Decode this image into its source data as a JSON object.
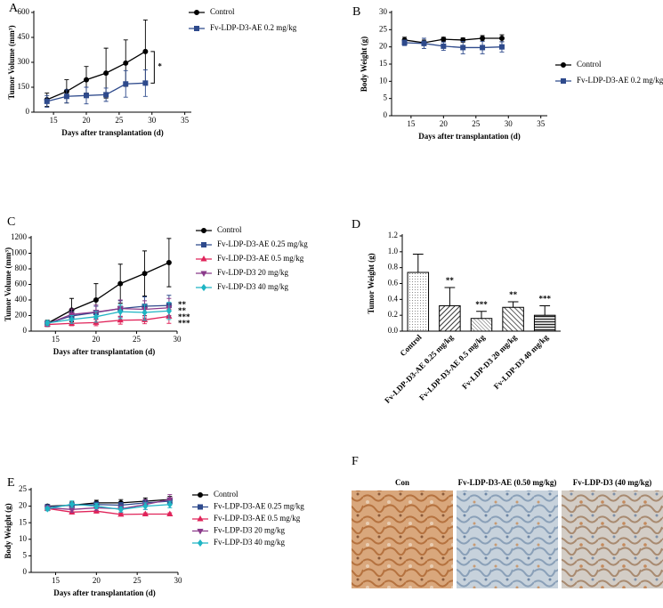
{
  "chart_data": [
    {
      "type": "line",
      "panel_label": "A",
      "xlabel": "Days after transplantation (d)",
      "ylabel": "Tumor Volume (mm³)",
      "x": [
        14,
        17,
        20,
        23,
        26,
        29
      ],
      "xlim": [
        12,
        36
      ],
      "xticks": [
        15,
        20,
        25,
        30,
        35
      ],
      "ylim": [
        0,
        600
      ],
      "yticks": [
        0,
        150,
        300,
        450,
        600
      ],
      "series": [
        {
          "name": "Control",
          "color": "#000000",
          "marker": "circle",
          "values": [
            75,
            125,
            195,
            235,
            295,
            365
          ],
          "errors": [
            40,
            70,
            80,
            150,
            140,
            190
          ]
        },
        {
          "name": "Fv-LDP-D3-AE 0.2 mg/kg",
          "color": "#2e4a8c",
          "marker": "square",
          "values": [
            65,
            95,
            100,
            105,
            170,
            175
          ],
          "errors": [
            35,
            40,
            50,
            40,
            80,
            80
          ]
        }
      ],
      "annotations": [
        "*"
      ]
    },
    {
      "type": "line",
      "panel_label": "B",
      "xlabel": "Days after transplantation (d)",
      "ylabel": "Body Weight (g)",
      "x": [
        14,
        17,
        20,
        23,
        26,
        29
      ],
      "xlim": [
        12,
        36
      ],
      "xticks": [
        15,
        20,
        25,
        30,
        35
      ],
      "ylim": [
        0,
        30
      ],
      "yticks": [
        0,
        5,
        10,
        15,
        20,
        25,
        30
      ],
      "series": [
        {
          "name": "Control",
          "color": "#000000",
          "marker": "circle",
          "values": [
            22,
            21.2,
            22.2,
            22,
            22.5,
            22.5
          ],
          "errors": [
            0.8,
            0.8,
            0.6,
            0.6,
            0.8,
            1
          ]
        },
        {
          "name": "Fv-LDP-D3-AE 0.2 mg/kg",
          "color": "#2e4a8c",
          "marker": "square",
          "values": [
            21.2,
            21,
            20.2,
            19.8,
            19.8,
            20
          ],
          "errors": [
            0.8,
            1.5,
            1.2,
            1.8,
            1.8,
            1.5
          ]
        }
      ]
    },
    {
      "type": "line",
      "panel_label": "C",
      "xlabel": "Days after transplantation (d)",
      "ylabel": "Tumor Volume (mm³)",
      "x": [
        14,
        17,
        20,
        23,
        26,
        29
      ],
      "xlim": [
        12,
        30
      ],
      "xticks": [
        15,
        20,
        25,
        30
      ],
      "ylim": [
        0,
        1200
      ],
      "yticks": [
        0,
        200,
        400,
        600,
        800,
        1000,
        1200
      ],
      "series": [
        {
          "name": "Control",
          "color": "#000000",
          "marker": "circle",
          "values": [
            100,
            270,
            400,
            610,
            740,
            880
          ],
          "errors": [
            40,
            150,
            210,
            250,
            290,
            310
          ]
        },
        {
          "name": "Fv-LDP-D3-AE 0.25 mg/kg",
          "color": "#2e4a8c",
          "marker": "square",
          "values": [
            100,
            195,
            240,
            290,
            320,
            330
          ],
          "errors": [
            30,
            60,
            80,
            100,
            120,
            130
          ]
        },
        {
          "name": "Fv-LDP-D3-AE 0.5 mg/kg",
          "color": "#e0245a",
          "marker": "triangle",
          "values": [
            85,
            100,
            110,
            140,
            145,
            190
          ],
          "errors": [
            20,
            30,
            40,
            50,
            50,
            90
          ]
        },
        {
          "name": "Fv-LDP-D3 20 mg/kg",
          "color": "#8b3a8b",
          "marker": "triangle-down",
          "values": [
            95,
            215,
            245,
            290,
            280,
            300
          ],
          "errors": [
            30,
            70,
            90,
            110,
            110,
            120
          ]
        },
        {
          "name": "Fv-LDP-D3 40 mg/kg",
          "color": "#1fb5c4",
          "marker": "diamond",
          "values": [
            105,
            150,
            185,
            250,
            240,
            260
          ],
          "errors": [
            30,
            50,
            70,
            90,
            100,
            110
          ]
        }
      ],
      "annotations": [
        "**",
        "**",
        "***",
        "***"
      ]
    },
    {
      "type": "bar",
      "panel_label": "D",
      "ylabel": "Tumor Weight (g)",
      "categories": [
        "Control",
        "Fv-LDP-D3-AE 0.25 mg/kg",
        "Fv-LDP-D3-AE 0.5 mg/kg",
        "Fv-LDP-D3 20 mg/kg",
        "Fv-LDP-D3 40 mg/kg"
      ],
      "values": [
        0.74,
        0.32,
        0.16,
        0.3,
        0.2
      ],
      "errors": [
        0.23,
        0.23,
        0.09,
        0.07,
        0.12
      ],
      "significance": [
        null,
        "**",
        "***",
        "**",
        "***"
      ],
      "color": "#000000",
      "ylim": [
        0,
        1.2
      ],
      "yticks": [
        {
          "value": 0,
          "label": "0.0"
        },
        0.2,
        0.4,
        0.6,
        0.8,
        {
          "value": 1,
          "label": "1.0"
        },
        1.2
      ]
    },
    {
      "type": "line",
      "panel_label": "E",
      "xlabel": "Days after transplantation (d)",
      "ylabel": "Body Weight (g)",
      "x": [
        14,
        17,
        20,
        23,
        26,
        29
      ],
      "xlim": [
        12,
        30
      ],
      "xticks": [
        15,
        20,
        25,
        30
      ],
      "ylim": [
        0,
        25
      ],
      "yticks": [
        0,
        5,
        10,
        15,
        20,
        25
      ],
      "series": [
        {
          "name": "Control",
          "color": "#000000",
          "marker": "circle",
          "values": [
            20,
            20.3,
            21,
            21,
            21.5,
            22
          ],
          "errors": [
            0.5,
            1,
            0.8,
            1,
            1,
            1
          ]
        },
        {
          "name": "Fv-LDP-D3-AE 0.25 mg/kg",
          "color": "#2e4a8c",
          "marker": "square",
          "values": [
            19.8,
            20.3,
            20.5,
            20.3,
            21,
            21.5
          ],
          "errors": [
            0.5,
            0.8,
            0.8,
            0.8,
            1,
            1
          ]
        },
        {
          "name": "Fv-LDP-D3-AE 0.5 mg/kg",
          "color": "#e0245a",
          "marker": "triangle",
          "values": [
            19.3,
            18.2,
            18.5,
            17.5,
            17.6,
            17.6
          ],
          "errors": [
            0.5,
            0.6,
            0.6,
            0.4,
            0.4,
            0.4
          ]
        },
        {
          "name": "Fv-LDP-D3 20 mg/kg",
          "color": "#8b3a8b",
          "marker": "triangle-down",
          "values": [
            19.5,
            19,
            19.5,
            19.2,
            20.5,
            22
          ],
          "errors": [
            0.6,
            0.8,
            0.8,
            1,
            1.5,
            1.5
          ]
        },
        {
          "name": "Fv-LDP-D3 40 mg/kg",
          "color": "#1fb5c4",
          "marker": "diamond",
          "values": [
            19.2,
            20.6,
            20,
            19,
            20,
            20.5
          ],
          "errors": [
            0.6,
            1,
            0.8,
            0.8,
            1,
            1
          ]
        }
      ]
    }
  ],
  "image_panel": {
    "panel_label": "F",
    "captions": [
      "Con",
      "Fv-LDP-D3-AE (0.50 mg/kg)",
      "Fv-LDP-D3 (40 mg/kg)"
    ]
  }
}
